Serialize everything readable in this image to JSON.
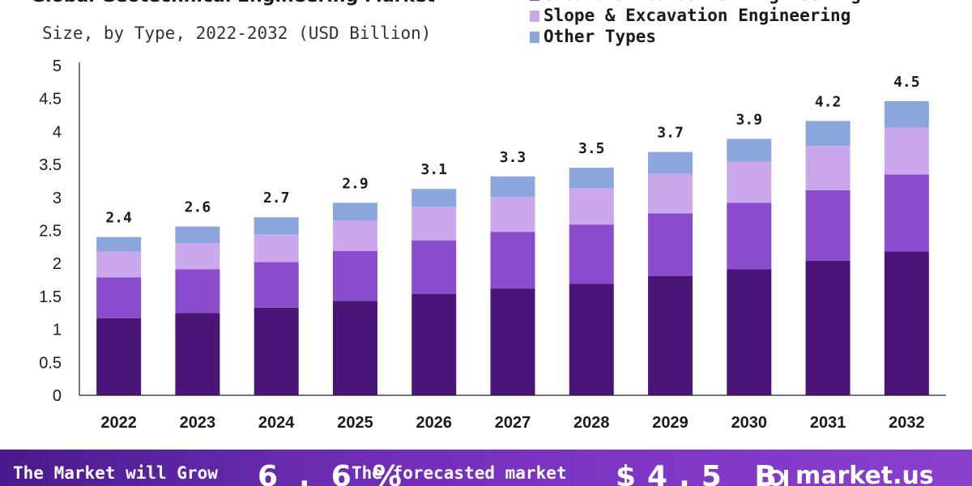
{
  "chart_data": {
    "type": "bar",
    "stacked": true,
    "title": "Global Geotechnical Engineering Market",
    "subtitle": "Size, by Type, 2022-2032 (USD Billion)",
    "categories": [
      "2022",
      "2023",
      "2024",
      "2025",
      "2026",
      "2027",
      "2028",
      "2029",
      "2030",
      "2031",
      "2032"
    ],
    "series": [
      {
        "name": "",
        "color": "#4b1578",
        "values": [
          1.17,
          1.25,
          1.33,
          1.43,
          1.54,
          1.62,
          1.69,
          1.81,
          1.91,
          2.04,
          2.18
        ]
      },
      {
        "name": "Ground & Foundation Engineering",
        "color": "#8a4ccc",
        "values": [
          0.62,
          0.66,
          0.69,
          0.76,
          0.81,
          0.86,
          0.9,
          0.95,
          1.01,
          1.07,
          1.17
        ]
      },
      {
        "name": "Slope & Excavation Engineering",
        "color": "#cba8ec",
        "values": [
          0.39,
          0.4,
          0.42,
          0.46,
          0.51,
          0.53,
          0.55,
          0.6,
          0.62,
          0.67,
          0.71
        ]
      },
      {
        "name": "Other Types",
        "color": "#8aa6dc",
        "values": [
          0.22,
          0.25,
          0.26,
          0.27,
          0.27,
          0.31,
          0.31,
          0.33,
          0.35,
          0.38,
          0.4
        ]
      }
    ],
    "totals": [
      "2.4",
      "2.6",
      "2.7",
      "2.9",
      "3.1",
      "3.3",
      "3.5",
      "3.7",
      "3.9",
      "4.2",
      "4.5"
    ],
    "ylim": [
      0,
      5
    ],
    "yticks": [
      "0",
      "0.5",
      "1",
      "1.5",
      "2",
      "2.5",
      "3",
      "3.5",
      "4",
      "4.5",
      "5"
    ],
    "grid": false,
    "legend_position": "top-right"
  },
  "footer": {
    "growth_text": "The Market will Grow",
    "cagr": "6.6%",
    "forecast_text": "The forecasted market",
    "forecast_value": "$4.5 B",
    "brand": "market.us"
  },
  "colors": {
    "brand_purple": "#6a2bb0",
    "axis": "#222222"
  }
}
